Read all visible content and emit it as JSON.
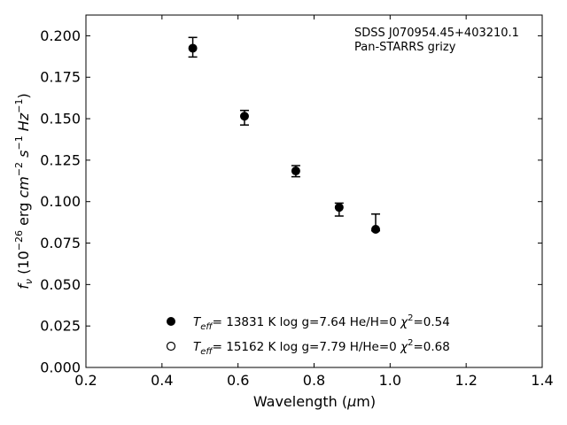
{
  "chart_data": {
    "type": "scatter",
    "annotation_lines": [
      "SDSS J070954.45+403210.1",
      "Pan-STARRS grizy"
    ],
    "xlabel": {
      "pre": "Wavelength (",
      "greek": "μ",
      "post": "m)"
    },
    "ylabel": "f_nu (10^-26 erg cm^-2 s^-1 Hz^-1)",
    "xlim": [
      0.2,
      1.4
    ],
    "ylim": [
      0.0,
      0.2125
    ],
    "xticks": [
      "0.2",
      "0.4",
      "0.6",
      "0.8",
      "1.0",
      "1.2",
      "1.4"
    ],
    "yticks": [
      "0.000",
      "0.025",
      "0.050",
      "0.075",
      "0.100",
      "0.125",
      "0.150",
      "0.175",
      "0.200"
    ],
    "grid": false,
    "legend_position": "lower-center",
    "series": [
      {
        "marker": "filled-circle",
        "x": [
          0.481,
          0.617,
          0.752,
          0.866,
          0.962
        ],
        "y": [
          0.1925,
          0.1515,
          0.1185,
          0.0965,
          0.0833
        ],
        "yerr_low": [
          0.1872,
          0.1462,
          0.115,
          0.0913,
          0.0824
        ],
        "yerr_high": [
          0.199,
          0.155,
          0.1217,
          0.0991,
          0.0925
        ]
      }
    ],
    "legend": [
      {
        "marker": "filled",
        "teff_label": "T",
        "teff_sub": "eff",
        "text": "= 13831 K  log g=7.64  He/H=0  ",
        "chi": "χ",
        "chi_exp": "2",
        "chi_val": "=0.54"
      },
      {
        "marker": "open",
        "teff_label": "T",
        "teff_sub": "eff",
        "text": "= 15162 K  log g=7.79  H/He=0  ",
        "chi": "χ",
        "chi_exp": "2",
        "chi_val": "=0.68"
      }
    ],
    "colors": {
      "axes": "#000000",
      "marker": "#000000",
      "background": "#ffffff"
    }
  }
}
